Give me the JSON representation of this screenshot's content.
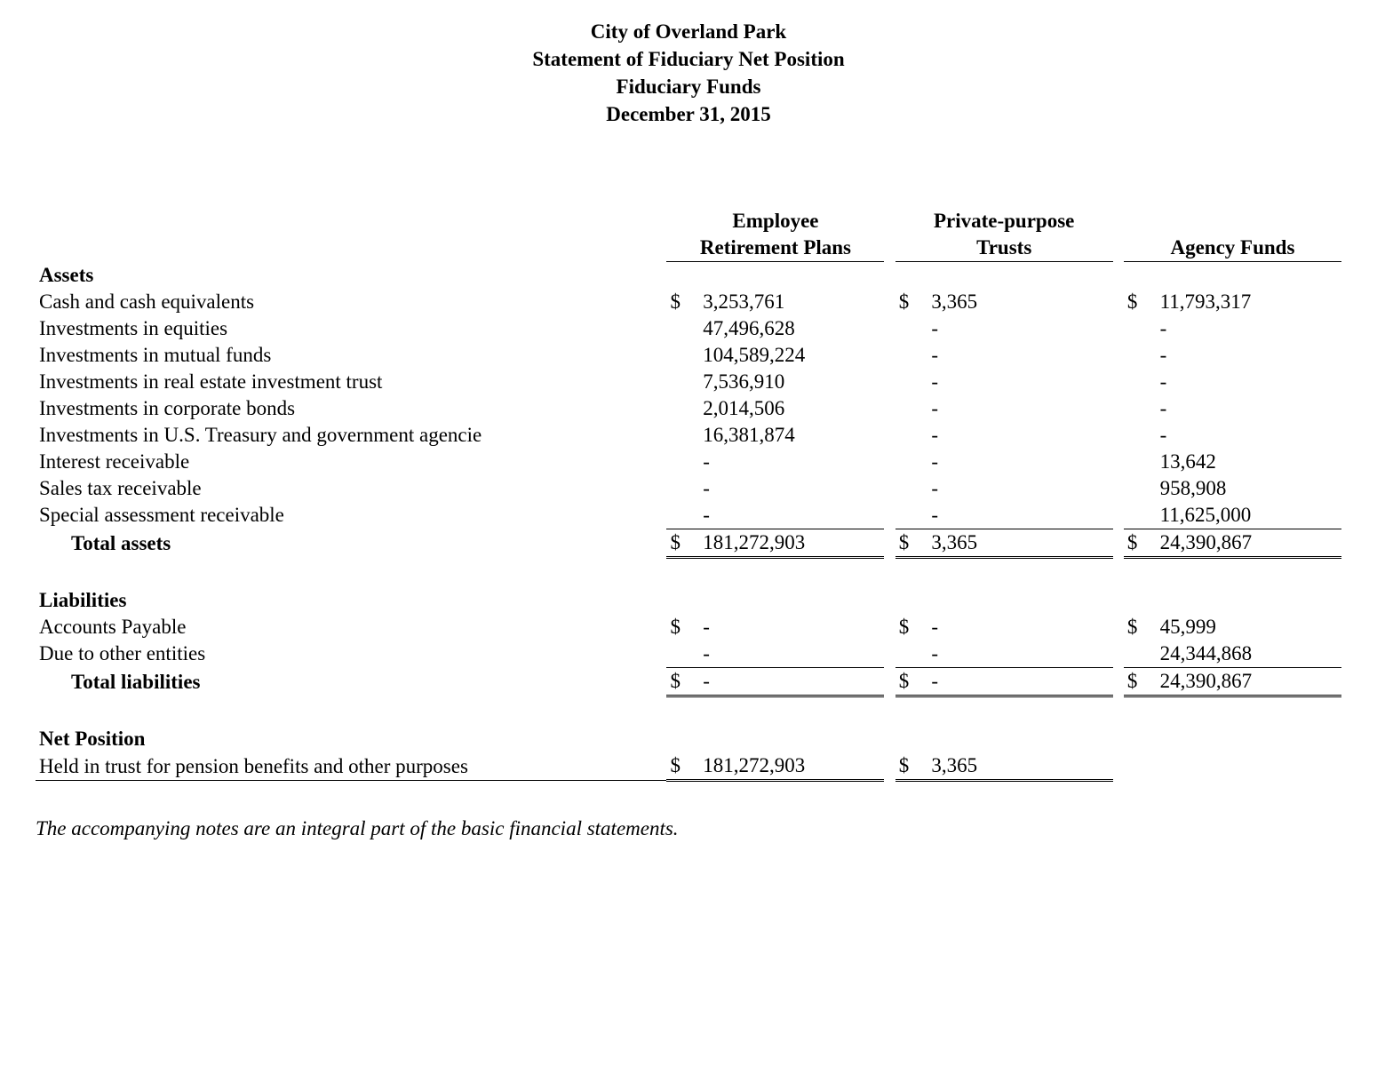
{
  "title": {
    "l1": "City of Overland Park",
    "l2": "Statement of Fiduciary Net Position",
    "l3": "Fiduciary Funds",
    "l4": "December 31, 2015"
  },
  "columns": {
    "c1a": "Employee",
    "c1b": "Retirement Plans",
    "c2a": "Private-purpose",
    "c2b": "Trusts",
    "c3b": "Agency Funds"
  },
  "sections": {
    "assets": "Assets",
    "liab": "Liabilities",
    "netpos": "Net Position",
    "total_assets": "Total assets",
    "total_liab": "Total liabilities"
  },
  "rows": {
    "cash": {
      "label": "Cash and cash equivalents",
      "s1": "$",
      "v1": "3,253,761",
      "s2": "$",
      "v2": "3,365",
      "s3": "$",
      "v3": "11,793,317"
    },
    "eq": {
      "label": "Investments in equities",
      "v1": "47,496,628",
      "v2": "-",
      "v3": "-"
    },
    "mf": {
      "label": "Investments in mutual funds",
      "v1": "104,589,224",
      "v2": "-",
      "v3": "-"
    },
    "reit": {
      "label": "Investments in real estate investment trust",
      "v1": "7,536,910",
      "v2": "-",
      "v3": "-"
    },
    "corp": {
      "label": "Investments in corporate bonds",
      "v1": "2,014,506",
      "v2": "-",
      "v3": "-"
    },
    "ust": {
      "label": "Investments in U.S. Treasury and government agencie",
      "v1": "16,381,874",
      "v2": "-",
      "v3": "-"
    },
    "intr": {
      "label": "Interest receivable",
      "v1": "-",
      "v2": "-",
      "v3": "13,642"
    },
    "stax": {
      "label": "Sales tax receivable",
      "v1": "-",
      "v2": "-",
      "v3": "958,908"
    },
    "spec": {
      "label": "Special assessment receivable",
      "v1": "-",
      "v2": "-",
      "v3": "11,625,000"
    },
    "ta": {
      "s1": "$",
      "v1": "181,272,903",
      "s2": "$",
      "v2": "3,365",
      "s3": "$",
      "v3": "24,390,867"
    },
    "ap": {
      "label": "Accounts Payable",
      "s1": "$",
      "v1": "-",
      "s2": "$",
      "v2": "-",
      "s3": "$",
      "v3": "45,999"
    },
    "due": {
      "label": "Due to other entities",
      "v1": "-",
      "v2": "-",
      "v3": "24,344,868"
    },
    "tl": {
      "s1": "$",
      "v1": "-",
      "s2": "$",
      "v2": "-",
      "s3": "$",
      "v3": "24,390,867"
    },
    "held": {
      "label": "Held in trust for pension benefits and other purposes",
      "s1": "$",
      "v1": "181,272,903",
      "s2": "$",
      "v2": "3,365"
    }
  },
  "footnote": "The accompanying notes are an integral part of the basic financial statements."
}
